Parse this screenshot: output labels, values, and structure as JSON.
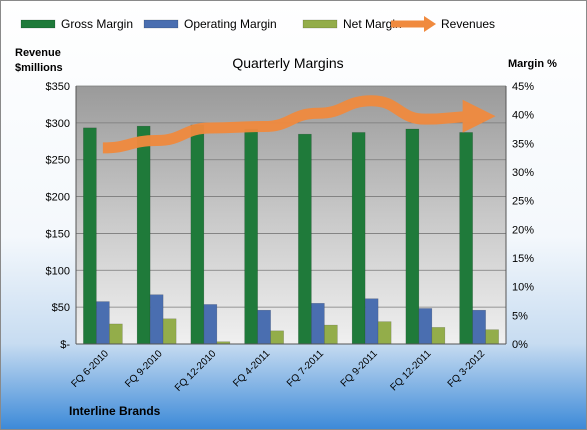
{
  "chart_data": {
    "type": "bar",
    "title": "Quarterly Margins",
    "footer": "Interline Brands",
    "left_axis_title_line1": "Revenue",
    "left_axis_title_line2": "$millions",
    "right_axis_title": "Margin %",
    "categories": [
      "FQ 6-2010",
      "FQ 9-2010",
      "FQ 12-2010",
      "FQ 4-2011",
      "FQ 7-2011",
      "FQ 9-2011",
      "FQ 12-2011",
      "FQ 3-2012"
    ],
    "left_axis": {
      "min": 0,
      "max": 350,
      "ticks": [
        "$-",
        "$50",
        "$100",
        "$150",
        "$200",
        "$250",
        "$300",
        "$350"
      ]
    },
    "right_axis": {
      "min": 0,
      "max": 45,
      "ticks": [
        "0%",
        "5%",
        "10%",
        "15%",
        "20%",
        "25%",
        "30%",
        "35%",
        "40%",
        "45%"
      ]
    },
    "series": [
      {
        "name": "Gross Margin",
        "axis": "right",
        "kind": "bar",
        "color": "#1f7a3a",
        "values": [
          37.7,
          38.0,
          38.2,
          37.5,
          36.6,
          36.9,
          37.5,
          36.9
        ]
      },
      {
        "name": "Operating Margin",
        "axis": "right",
        "kind": "bar",
        "color": "#4a6eb0",
        "values": [
          7.4,
          8.6,
          6.9,
          5.9,
          7.1,
          7.9,
          6.2,
          5.9
        ]
      },
      {
        "name": "Net Margin",
        "axis": "right",
        "kind": "bar",
        "color": "#93ad4a",
        "values": [
          3.5,
          4.4,
          0.4,
          2.3,
          3.3,
          3.9,
          2.9,
          2.5
        ]
      },
      {
        "name": "Revenues",
        "axis": "left",
        "kind": "line",
        "color": "#f08a3e",
        "values": [
          266,
          276,
          293,
          295,
          313,
          330,
          305,
          309
        ]
      }
    ],
    "ylim_left": [
      0,
      350
    ],
    "ylim_right": [
      0,
      45
    ],
    "grid": true,
    "legend_position": "top"
  }
}
